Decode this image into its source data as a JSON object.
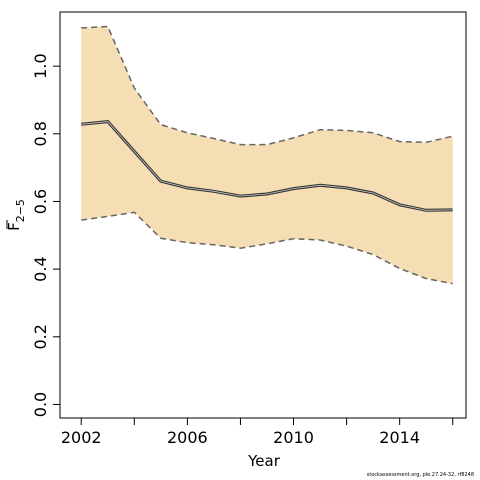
{
  "chart_data": {
    "type": "line",
    "title": "",
    "xlabel": "Year",
    "ylabel": "F",
    "ylabel_subscript": "2−5",
    "xlim": [
      2001.2,
      2016.5
    ],
    "ylim": [
      -0.04,
      1.16
    ],
    "x_ticks": [
      2002,
      2006,
      2010,
      2014
    ],
    "x_minor_ticks": [
      2004,
      2008,
      2012,
      2016
    ],
    "y_ticks": [
      0.0,
      0.2,
      0.4,
      0.6,
      0.8,
      1.0
    ],
    "y_tick_labels": [
      "0.0",
      "0.2",
      "0.4",
      "0.6",
      "0.8",
      "1.0"
    ],
    "x": [
      2002,
      2003,
      2004,
      2005,
      2006,
      2007,
      2008,
      2009,
      2010,
      2011,
      2012,
      2013,
      2014,
      2015,
      2016
    ],
    "series": [
      {
        "role": "estimate",
        "values": [
          0.828,
          0.836,
          0.748,
          0.66,
          0.64,
          0.63,
          0.616,
          0.622,
          0.638,
          0.648,
          0.64,
          0.625,
          0.59,
          0.574,
          0.575
        ]
      },
      {
        "role": "upper",
        "values": [
          1.113,
          1.117,
          0.935,
          0.827,
          0.803,
          0.786,
          0.768,
          0.768,
          0.788,
          0.812,
          0.81,
          0.803,
          0.777,
          0.775,
          0.793
        ]
      },
      {
        "role": "lower",
        "values": [
          0.545,
          0.556,
          0.568,
          0.491,
          0.478,
          0.472,
          0.462,
          0.475,
          0.49,
          0.486,
          0.468,
          0.443,
          0.402,
          0.372,
          0.357
        ]
      }
    ],
    "band_color": "#F5DEB3",
    "line_color": "#333333",
    "bound_color": "#666666",
    "grid": false,
    "legend": "none"
  },
  "footnote": "stockassessment.org, ple.27.24-32, rf8248"
}
